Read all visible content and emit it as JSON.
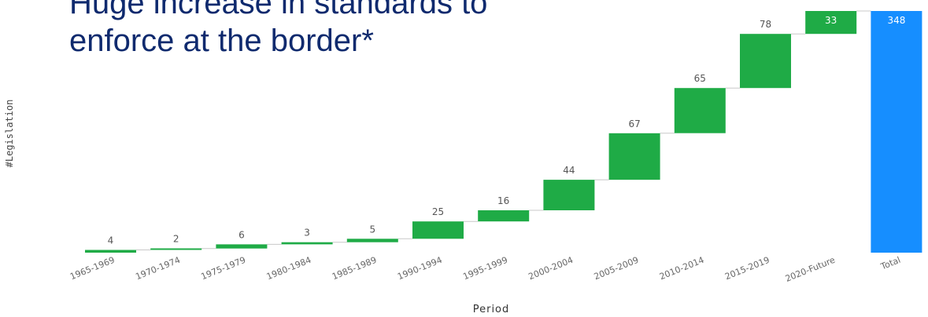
{
  "slide": {
    "title_line1": "Huge increase in standards to",
    "title_line2": "enforce at the border*"
  },
  "chart_data": {
    "type": "bar",
    "subtype": "waterfall",
    "xlabel": "Period",
    "ylabel": "#Legislation",
    "categories": [
      "1965-1969",
      "1970-1974",
      "1975-1979",
      "1980-1984",
      "1985-1989",
      "1990-1994",
      "1995-1999",
      "2000-2004",
      "2005-2009",
      "2010-2014",
      "2015-2019",
      "2020-Future",
      "Total"
    ],
    "values": [
      4,
      2,
      6,
      3,
      5,
      25,
      16,
      44,
      67,
      65,
      78,
      33,
      348
    ],
    "ylim": [
      0,
      348
    ],
    "grid": false,
    "colors": {
      "increase": "#1fab46",
      "total": "#168eff",
      "connector": "#c8c8c8"
    }
  }
}
